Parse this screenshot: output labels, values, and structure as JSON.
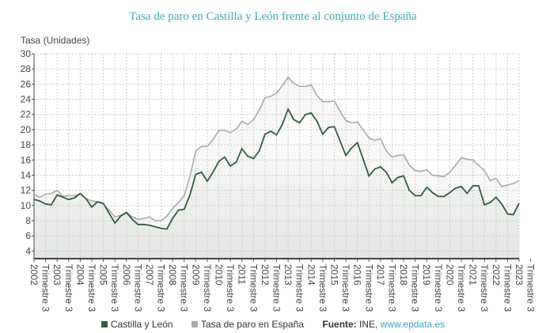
{
  "chart_data": {
    "type": "line",
    "title": "Tasa de paro en Castilla y León frente al conjunto de España",
    "ylabel": "Tasa (Unidades)",
    "xlabel": "",
    "ylim": [
      3,
      30
    ],
    "yticks": [
      4,
      6,
      8,
      10,
      12,
      14,
      16,
      18,
      20,
      22,
      24,
      26,
      28,
      30
    ],
    "grid": true,
    "legend_placement": "bottom",
    "x_start": "2002 Trimestre 1",
    "x_end": "2023 Trimestre 1",
    "xtick_labels": [
      "2002",
      "Trimestre 3",
      "2003",
      "Trimestre 3",
      "2004",
      "Trimestre 3",
      "2005",
      "Trimestre 3",
      "2006",
      "Trimestre 3",
      "2007",
      "Trimestre 3",
      "2008",
      "Trimestre 3",
      "2009",
      "Trimestre 3",
      "2010",
      "Trimestre 3",
      "2011",
      "Trimestre 3",
      "2012",
      "Trimestre 3",
      "2013",
      "Trimestre 3",
      "2014",
      "Trimestre 3",
      "2015",
      "Trimestre 3",
      "2016",
      "Trimestre 3",
      "2017",
      "Trimestre 3",
      "2018",
      "Trimestre 3",
      "2019",
      "Trimestre 3",
      "2020",
      "Trimestre 3",
      "2021",
      "Trimestre 3",
      "2022",
      "Trimestre 3",
      "2023",
      "Trimestre 3"
    ],
    "series": [
      {
        "name": "Castilla y León",
        "color": "#2f5f3d",
        "values": [
          10.8,
          10.6,
          10.2,
          10.1,
          11.4,
          11.1,
          10.8,
          11.0,
          11.6,
          10.9,
          9.8,
          10.5,
          10.3,
          9.0,
          7.7,
          8.6,
          9.1,
          8.2,
          7.5,
          7.5,
          7.4,
          7.2,
          7.0,
          6.9,
          8.3,
          9.4,
          9.5,
          11.4,
          14.1,
          14.4,
          13.2,
          14.4,
          15.8,
          16.4,
          15.2,
          15.7,
          17.5,
          16.5,
          16.2,
          17.2,
          19.4,
          19.8,
          19.3,
          20.7,
          22.7,
          21.3,
          20.9,
          22.0,
          22.2,
          21.1,
          19.4,
          20.3,
          20.4,
          18.5,
          16.6,
          17.6,
          18.3,
          16.1,
          13.9,
          14.8,
          15.1,
          14.4,
          13.0,
          13.7,
          13.9,
          12.0,
          11.3,
          11.3,
          12.4,
          11.7,
          11.2,
          11.2,
          11.7,
          12.3,
          12.5,
          11.6,
          12.6,
          12.6,
          10.1,
          10.4,
          11.1,
          10.2,
          8.9,
          8.8,
          10.3
        ]
      },
      {
        "name": "Tasa de paro en España",
        "color": "#aaaaaa",
        "values": [
          11.5,
          11.1,
          11.5,
          11.6,
          12.0,
          11.2,
          11.3,
          11.3,
          11.5,
          10.9,
          10.6,
          10.5,
          10.2,
          9.4,
          8.5,
          8.7,
          9.1,
          8.5,
          8.2,
          8.3,
          8.5,
          8.0,
          8.0,
          8.6,
          9.6,
          10.4,
          11.3,
          13.8,
          17.2,
          17.8,
          17.8,
          18.7,
          19.9,
          19.9,
          19.6,
          20.1,
          21.1,
          20.7,
          21.3,
          22.6,
          24.2,
          24.4,
          24.8,
          25.8,
          26.9,
          26.1,
          25.7,
          25.7,
          25.9,
          24.5,
          23.7,
          23.7,
          23.8,
          22.4,
          21.2,
          20.9,
          21.0,
          20.0,
          18.9,
          18.6,
          18.8,
          17.2,
          16.4,
          16.6,
          16.7,
          15.3,
          14.6,
          14.5,
          14.7,
          14.0,
          13.9,
          13.8,
          14.4,
          15.3,
          16.3,
          16.1,
          16.0,
          15.3,
          14.6,
          13.3,
          13.6,
          12.5,
          12.7,
          12.9,
          13.3
        ]
      }
    ]
  },
  "legend": {
    "source_label": "Fuente:",
    "source_text": " INE, ",
    "source_link": "www.epdata.es"
  }
}
